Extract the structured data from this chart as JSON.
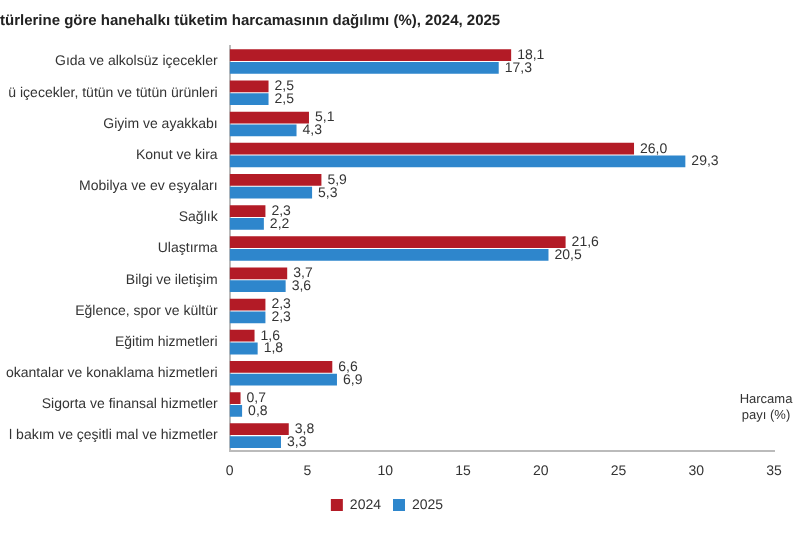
{
  "chart_data": {
    "type": "bar",
    "orientation": "horizontal",
    "title": "türlerine göre hanehalkı tüketim harcamasının dağılımı (%), 2024, 2025",
    "xlabel": "Harcama payı (%)",
    "categories": [
      "Gıda ve alkolsüz içecekler",
      "ü içecekler, tütün ve tütün ürünleri",
      "Giyim ve ayakkabı",
      "Konut ve kira",
      "Mobilya ve ev eşyaları",
      "Sağlık",
      "Ulaştırma",
      "Bilgi ve iletişim",
      "Eğlence, spor ve kültür",
      "Eğitim hizmetleri",
      "okantalar ve konaklama hizmetleri",
      "Sigorta ve finansal hizmetler",
      "l bakım ve çeşitli mal ve hizmetler"
    ],
    "series": [
      {
        "name": "2024",
        "color": "#b31b26",
        "values": [
          18.1,
          2.5,
          5.1,
          26.0,
          5.9,
          2.3,
          21.6,
          3.7,
          2.3,
          1.6,
          6.6,
          0.7,
          3.8
        ],
        "value_labels": [
          "18,1",
          "2,5",
          "5,1",
          "26,0",
          "5,9",
          "2,3",
          "21,6",
          "3,7",
          "2,3",
          "1,6",
          "6,6",
          "0,7",
          "3,8"
        ]
      },
      {
        "name": "2025",
        "color": "#2e86cc",
        "values": [
          17.3,
          2.5,
          4.3,
          29.3,
          5.3,
          2.2,
          20.5,
          3.6,
          2.3,
          1.8,
          6.9,
          0.8,
          3.3
        ],
        "value_labels": [
          "17,3",
          "2,5",
          "4,3",
          "29,3",
          "5,3",
          "2,2",
          "20,5",
          "3,6",
          "2,3",
          "1,8",
          "6,9",
          "0,8",
          "3,3"
        ]
      }
    ],
    "xlim": [
      0,
      35
    ],
    "xticks": [
      0,
      5,
      10,
      15,
      20,
      25,
      30,
      35
    ],
    "grid": false,
    "legend": "bottom"
  }
}
